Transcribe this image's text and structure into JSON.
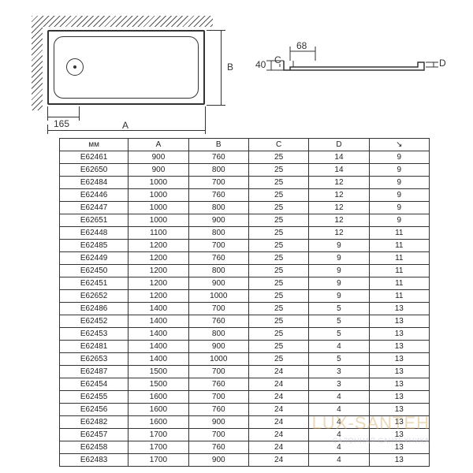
{
  "diagram": {
    "top_view": {
      "dim_165": "165",
      "label_A": "A",
      "label_B": "B"
    },
    "section_view": {
      "dim_68": "68",
      "dim_40": "40",
      "label_C": "C",
      "label_D": "D"
    }
  },
  "table": {
    "headers": [
      "мм",
      "A",
      "B",
      "C",
      "D",
      "↘"
    ],
    "rows": [
      [
        "E62461",
        "900",
        "760",
        "25",
        "14",
        "9"
      ],
      [
        "E62650",
        "900",
        "800",
        "25",
        "14",
        "9"
      ],
      [
        "E62484",
        "1000",
        "700",
        "25",
        "12",
        "9"
      ],
      [
        "E62446",
        "1000",
        "760",
        "25",
        "12",
        "9"
      ],
      [
        "E62447",
        "1000",
        "800",
        "25",
        "12",
        "9"
      ],
      [
        "E62651",
        "1000",
        "900",
        "25",
        "12",
        "9"
      ],
      [
        "E62448",
        "1100",
        "800",
        "25",
        "12",
        "11"
      ],
      [
        "E62485",
        "1200",
        "700",
        "25",
        "9",
        "11"
      ],
      [
        "E62449",
        "1200",
        "760",
        "25",
        "9",
        "11"
      ],
      [
        "E62450",
        "1200",
        "800",
        "25",
        "9",
        "11"
      ],
      [
        "E62451",
        "1200",
        "900",
        "25",
        "9",
        "11"
      ],
      [
        "E62652",
        "1200",
        "1000",
        "25",
        "9",
        "11"
      ],
      [
        "E62486",
        "1400",
        "700",
        "25",
        "5",
        "13"
      ],
      [
        "E62452",
        "1400",
        "760",
        "25",
        "5",
        "13"
      ],
      [
        "E62453",
        "1400",
        "800",
        "25",
        "5",
        "13"
      ],
      [
        "E62481",
        "1400",
        "900",
        "25",
        "4",
        "13"
      ],
      [
        "E62653",
        "1400",
        "1000",
        "25",
        "5",
        "13"
      ],
      [
        "E62487",
        "1500",
        "700",
        "24",
        "3",
        "13"
      ],
      [
        "E62454",
        "1500",
        "760",
        "24",
        "3",
        "13"
      ],
      [
        "E62455",
        "1600",
        "700",
        "24",
        "4",
        "13"
      ],
      [
        "E62456",
        "1600",
        "760",
        "24",
        "4",
        "13"
      ],
      [
        "E62482",
        "1600",
        "900",
        "24",
        "4",
        "13"
      ],
      [
        "E62457",
        "1700",
        "700",
        "24",
        "4",
        "13"
      ],
      [
        "E62458",
        "1700",
        "760",
        "24",
        "4",
        "13"
      ],
      [
        "E62483",
        "1700",
        "900",
        "24",
        "4",
        "13"
      ]
    ]
  },
  "watermark": {
    "main": "LUX-SANTEH",
    "sub": "САЛОННАЯ САНТЕХНИКА"
  },
  "colors": {
    "line": "#333333",
    "bg": "#ffffff"
  }
}
